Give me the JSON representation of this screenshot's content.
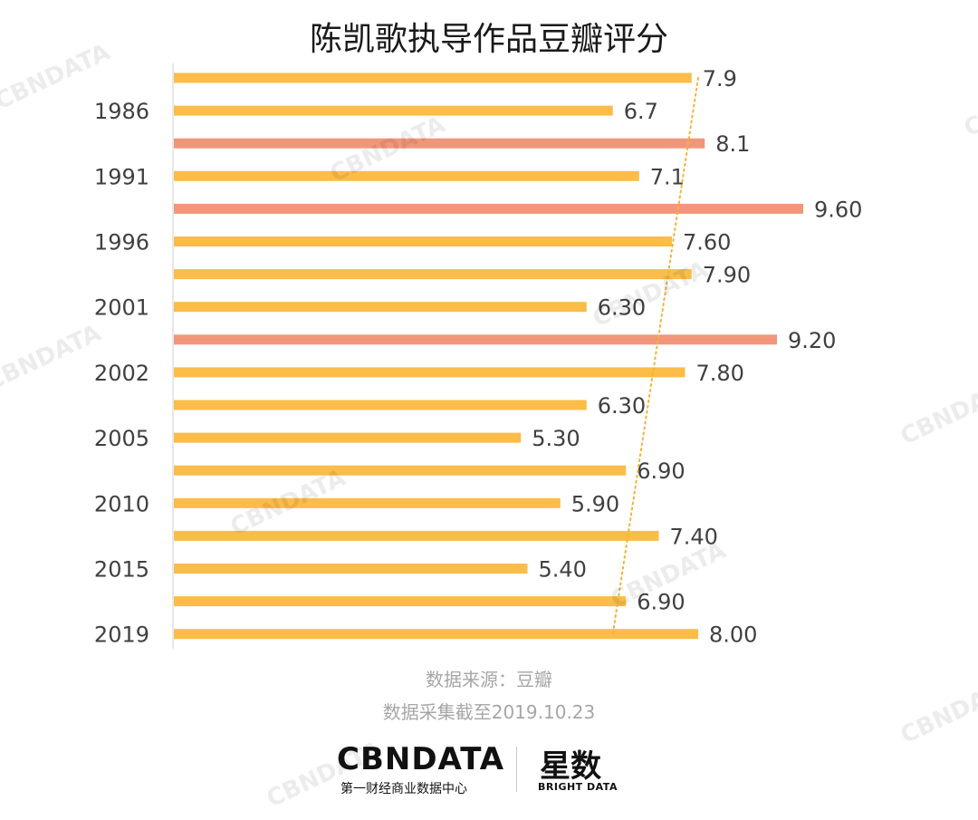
{
  "title": "陈凯歌执导作品豆瓣评分",
  "source_line1": "数据来源：豆瓣",
  "source_line2": "数据采集截至2019.10.23",
  "watermark_text": "CBNDATA",
  "logo": {
    "cbn": "CBNDATA",
    "cbn_sub": "第一财经商业数据中心",
    "xingshu": "星数",
    "xingshu_sub": "BRIGHT DATA"
  },
  "colors": {
    "normal": "#fbbc48",
    "highlight": "#f2967a",
    "trend": "#f0b535",
    "label": "#404040"
  },
  "chart_data": {
    "type": "bar",
    "orientation": "horizontal",
    "title": "陈凯歌执导作品豆瓣评分",
    "year_labels": [
      "",
      "1986",
      "",
      "1991",
      "",
      "1996",
      "",
      "2001",
      "",
      "2002",
      "",
      "2005",
      "",
      "2010",
      "",
      "2015",
      "",
      "2019"
    ],
    "values": [
      7.9,
      6.7,
      8.1,
      7.1,
      9.6,
      7.6,
      7.9,
      6.3,
      9.2,
      7.8,
      6.3,
      5.3,
      6.9,
      5.9,
      7.4,
      5.4,
      6.9,
      8.0
    ],
    "value_labels": [
      "7.9",
      "6.7",
      "8.1",
      "7.1",
      "9.60",
      "7.60",
      "7.90",
      "6.30",
      "9.20",
      "7.80",
      "6.30",
      "5.30",
      "6.90",
      "5.90",
      "7.40",
      "5.40",
      "6.90",
      "8.00"
    ],
    "highlighted": [
      false,
      false,
      true,
      false,
      true,
      false,
      false,
      false,
      true,
      false,
      false,
      false,
      false,
      false,
      false,
      false,
      false,
      false
    ],
    "trendline": {
      "style": "dotted",
      "from_value": 8.0,
      "to_value": 6.7
    }
  }
}
